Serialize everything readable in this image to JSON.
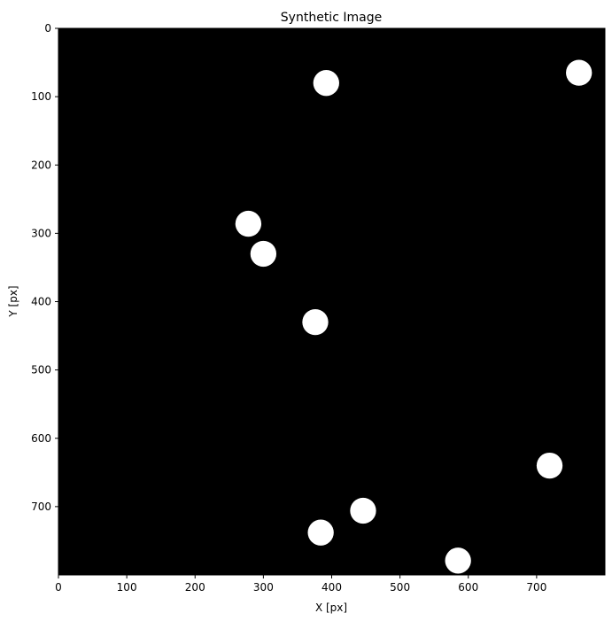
{
  "chart_data": {
    "type": "scatter",
    "title": "Synthetic Image",
    "xlabel": "X [px]",
    "ylabel": "Y [px]",
    "xlim": [
      0,
      800
    ],
    "ylim": [
      800,
      0
    ],
    "xticks": [
      0,
      100,
      200,
      300,
      400,
      500,
      600,
      700
    ],
    "yticks": [
      0,
      100,
      200,
      300,
      400,
      500,
      600,
      700
    ],
    "background_color": "#000000",
    "marker_color": "#ffffff",
    "marker_radius": 19,
    "points": [
      {
        "x": 762,
        "y": 65
      },
      {
        "x": 392,
        "y": 80
      },
      {
        "x": 278,
        "y": 286
      },
      {
        "x": 300,
        "y": 330
      },
      {
        "x": 376,
        "y": 430
      },
      {
        "x": 719,
        "y": 640
      },
      {
        "x": 446,
        "y": 706
      },
      {
        "x": 384,
        "y": 738
      },
      {
        "x": 585,
        "y": 779
      }
    ]
  }
}
